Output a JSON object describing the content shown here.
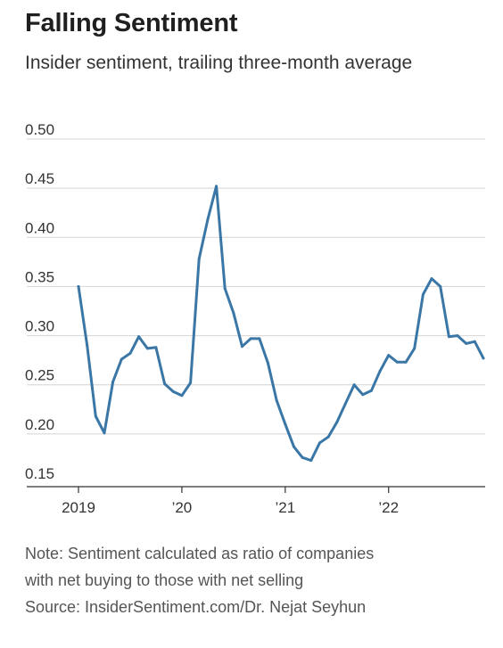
{
  "header": {
    "title": "Falling Sentiment",
    "subtitle": "Insider sentiment, trailing three-month average"
  },
  "footer": {
    "note_line1": "Note: Sentiment calculated as ratio of companies",
    "note_line2": "with net buying to those with net selling",
    "source": "Source: InsiderSentiment.com/Dr. Nejat Seyhun"
  },
  "colors": {
    "line": "#3a77a6",
    "grid": "#d4d4d4",
    "axis": "#333333"
  },
  "chart_data": {
    "type": "line",
    "title": "Falling Sentiment",
    "subtitle": "Insider sentiment, trailing three-month average",
    "ylim": [
      0.15,
      0.5
    ],
    "xlim": [
      "2019-01",
      "2022-12"
    ],
    "yticks": [
      0.15,
      0.2,
      0.25,
      0.3,
      0.35,
      0.4,
      0.45,
      0.5
    ],
    "ytick_labels": [
      "0.15",
      "0.20",
      "0.25",
      "0.30",
      "0.35",
      "0.40",
      "0.45",
      "0.50"
    ],
    "xticks": [
      "2019-01",
      "2020-01",
      "2021-01",
      "2022-01"
    ],
    "xtick_labels": [
      "2019",
      "’20",
      "’21",
      "’22"
    ],
    "grid": "horizontal",
    "series": [
      {
        "x": [
          "2019-01",
          "2019-02",
          "2019-03",
          "2019-04",
          "2019-05",
          "2019-06",
          "2019-07",
          "2019-08",
          "2019-09",
          "2019-10",
          "2019-11",
          "2019-12",
          "2020-01",
          "2020-02",
          "2020-03",
          "2020-04",
          "2020-05",
          "2020-06",
          "2020-07",
          "2020-08",
          "2020-09",
          "2020-10",
          "2020-11",
          "2020-12",
          "2021-01",
          "2021-02",
          "2021-03",
          "2021-04",
          "2021-05",
          "2021-06",
          "2021-07",
          "2021-08",
          "2021-09",
          "2021-10",
          "2021-11",
          "2021-12",
          "2022-01",
          "2022-02",
          "2022-03",
          "2022-04",
          "2022-05",
          "2022-06",
          "2022-07",
          "2022-08",
          "2022-09",
          "2022-10",
          "2022-11",
          "2022-12"
        ],
        "values": [
          0.35,
          0.29,
          0.218,
          0.201,
          0.253,
          0.276,
          0.282,
          0.299,
          0.287,
          0.288,
          0.251,
          0.243,
          0.239,
          0.252,
          0.378,
          0.418,
          0.452,
          0.348,
          0.323,
          0.289,
          0.297,
          0.297,
          0.272,
          0.234,
          0.21,
          0.187,
          0.176,
          0.173,
          0.191,
          0.197,
          0.212,
          0.231,
          0.25,
          0.24,
          0.244,
          0.264,
          0.28,
          0.273,
          0.273,
          0.287,
          0.342,
          0.358,
          0.35,
          0.299,
          0.3,
          0.292,
          0.294,
          0.277
        ]
      }
    ]
  }
}
